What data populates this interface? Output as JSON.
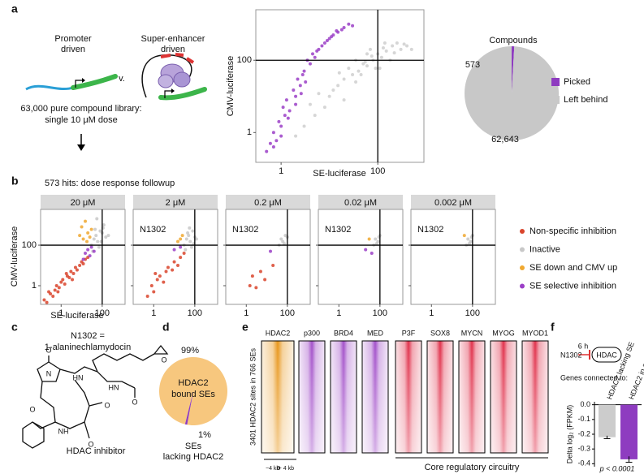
{
  "panel_labels": [
    "a",
    "b",
    "c",
    "d",
    "e",
    "f"
  ],
  "a": {
    "diagram": {
      "promoter": [
        "Promoter",
        "driven"
      ],
      "versus": "v.",
      "super_enhancer": [
        "Super-enhancer",
        "driven"
      ],
      "library": [
        "63,000 pure compound library:",
        "single 10 μM dose"
      ]
    },
    "scatter": {
      "type": "scatter",
      "log": true,
      "xlabel": "SE-luciferase",
      "ylabel": "CMV-luciferase",
      "xlim": [
        0.3,
        900
      ],
      "ylim": [
        0.15,
        2500
      ],
      "xticks": [
        1,
        100
      ],
      "yticks": [
        1,
        100
      ],
      "vline": 100,
      "hline": 100,
      "series": [
        {
          "color": "#cfcfcf",
          "x": [
            2,
            3,
            5,
            4,
            8,
            10,
            6,
            15,
            20,
            12,
            30,
            25,
            40,
            50,
            35,
            60,
            80,
            100,
            70,
            120,
            150,
            200,
            90,
            45,
            300,
            250,
            400,
            500,
            180,
            60,
            20,
            110,
            140,
            35,
            75,
            220,
            350,
            130,
            55,
            16
          ],
          "y": [
            0.8,
            1.5,
            3,
            6,
            5,
            10,
            12,
            20,
            30,
            15,
            40,
            60,
            50,
            80,
            100,
            70,
            100,
            150,
            200,
            120,
            180,
            250,
            60,
            40,
            200,
            300,
            250,
            200,
            100,
            150,
            8,
            60,
            300,
            25,
            130,
            160,
            280,
            220,
            90,
            45
          ]
        },
        {
          "color": "#9b3fc7",
          "x": [
            0.5,
            0.6,
            0.8,
            0.7,
            1,
            0.9,
            1.2,
            1.1,
            1.5,
            1.3,
            2,
            1.8,
            2.5,
            2.2,
            3,
            2.8,
            4,
            3.5,
            5,
            4.5,
            6,
            8,
            7,
            10,
            12,
            9,
            15,
            20,
            18,
            25,
            30,
            1,
            2,
            1.4,
            3.2,
            0.7,
            2.6,
            5.5,
            11,
            14
          ],
          "y": [
            0.3,
            0.5,
            0.6,
            1,
            1.5,
            2,
            3,
            5,
            4,
            8,
            10,
            15,
            20,
            30,
            50,
            40,
            80,
            100,
            120,
            150,
            200,
            300,
            250,
            400,
            500,
            350,
            600,
            800,
            700,
            1000,
            900,
            0.8,
            6,
            2.5,
            25,
            0.4,
            12,
            180,
            450,
            650
          ]
        }
      ]
    },
    "pie": {
      "type": "pie",
      "title": "Compounds",
      "categories": [
        "Picked",
        "Left behind"
      ],
      "values": [
        573,
        62643
      ],
      "value_labels": [
        "573",
        "62,643"
      ],
      "colors": [
        "#8e3cc0",
        "#c8c8c8"
      ]
    }
  },
  "b": {
    "type": "scatter",
    "log": true,
    "title": "573 hits: dose response followup",
    "xlabel": "SE-luciferase",
    "ylabel": "CMV-luciferase",
    "xlim": [
      0.1,
      1300
    ],
    "ylim": [
      0.12,
      5800
    ],
    "xticks": [
      1,
      100
    ],
    "yticks": [
      1,
      100
    ],
    "vline": 100,
    "hline": 100,
    "legend": [
      "Non-specific inhibition",
      "Inactive",
      "SE down and CMV up",
      "SE selective inhibition"
    ],
    "colors": [
      "#d9442b",
      "#c8c8c8",
      "#f0a830",
      "#9b3fc7"
    ],
    "facets": [
      {
        "label": "20 μM",
        "series": [
          {
            "x": [
              0.15,
              0.2,
              0.3,
              0.4,
              0.5,
              0.6,
              0.8,
              1,
              1.2,
              1.5,
              2,
              2.5,
              3,
              4,
              5,
              6,
              8,
              10,
              12,
              15,
              0.25,
              0.7,
              1.8,
              3.5,
              20
            ],
            "y": [
              0.2,
              0.15,
              0.4,
              0.3,
              0.6,
              1,
              0.8,
              1.5,
              2,
              1.2,
              3,
              2.5,
              5,
              4,
              8,
              6,
              10,
              15,
              12,
              20,
              0.5,
              0.5,
              4,
              2,
              25
            ]
          },
          {
            "x": [
              30,
              40,
              50,
              60,
              80,
              100,
              120,
              150,
              70,
              45,
              90,
              200,
              35,
              55,
              110
            ],
            "y": [
              100,
              200,
              300,
              150,
              500,
              400,
              1000,
              250,
              80,
              600,
              150,
              300,
              50,
              2000,
              700
            ]
          },
          {
            "x": [
              8,
              10,
              12,
              15,
              20,
              25,
              30,
              18
            ],
            "y": [
              300,
              800,
              200,
              1500,
              400,
              250,
              600,
              150
            ]
          },
          {
            "x": [
              15,
              20,
              25,
              30,
              40,
              12
            ],
            "y": [
              40,
              60,
              30,
              80,
              50,
              20
            ]
          }
        ]
      },
      {
        "label": "2 μM",
        "annotation": "N1302",
        "series": [
          {
            "x": [
              0.5,
              0.8,
              1,
              1.5,
              2,
              3,
              4,
              5,
              8,
              10,
              15,
              20,
              30,
              1.2
            ],
            "y": [
              0.3,
              1,
              0.5,
              2,
              3,
              1.5,
              5,
              8,
              6,
              15,
              10,
              25,
              40,
              4
            ]
          },
          {
            "x": [
              30,
              40,
              50,
              60,
              80,
              100,
              70,
              45,
              120,
              90,
              55,
              35
            ],
            "y": [
              100,
              200,
              300,
              150,
              500,
              250,
              80,
              400,
              200,
              120,
              700,
              60
            ]
          },
          {
            "x": [
              15,
              20,
              25
            ],
            "y": [
              150,
              200,
              300
            ]
          },
          {
            "x": [
              10,
              20
            ],
            "y": [
              60,
              80
            ]
          }
        ]
      },
      {
        "label": "0.2 μM",
        "annotation": "N1302",
        "series": [
          {
            "x": [
              1.5,
              2,
              3,
              5,
              8,
              20
            ],
            "y": [
              1,
              3,
              0.8,
              5,
              2,
              10
            ]
          },
          {
            "x": [
              40,
              50,
              60,
              80,
              100,
              70
            ],
            "y": [
              100,
              200,
              150,
              300,
              250,
              120
            ]
          },
          {
            "x": [],
            "y": []
          },
          {
            "x": [
              15
            ],
            "y": [
              50
            ]
          }
        ]
      },
      {
        "label": "0.02 μM",
        "annotation": "N1302",
        "series": [
          {
            "x": [],
            "y": []
          },
          {
            "x": [
              50,
              60,
              80,
              100,
              70,
              90
            ],
            "y": [
              100,
              200,
              150,
              300,
              120,
              250
            ]
          },
          {
            "x": [
              30
            ],
            "y": [
              200
            ]
          },
          {
            "x": [
              20,
              40
            ],
            "y": [
              60,
              40
            ]
          }
        ]
      },
      {
        "label": "0.002 μM",
        "annotation": "N1302",
        "series": [
          {
            "x": [],
            "y": []
          },
          {
            "x": [
              50,
              60,
              80,
              100,
              70,
              90
            ],
            "y": [
              100,
              200,
              150,
              300,
              120,
              250
            ]
          },
          {
            "x": [
              40
            ],
            "y": [
              300
            ]
          },
          {
            "x": [],
            "y": []
          }
        ]
      }
    ]
  },
  "c": {
    "lines": [
      "N1302 =",
      "1-alaninechlamydocin"
    ],
    "atoms": [
      "O",
      "N",
      "HN",
      "O",
      "NH",
      "O",
      "HN",
      "O",
      "O",
      "O"
    ],
    "caption": "HDAC inhibitor"
  },
  "d": {
    "type": "pie",
    "values": [
      99,
      1
    ],
    "value_labels": [
      "99%",
      "1%"
    ],
    "labels": [
      [
        "HDAC2",
        "bound SEs"
      ],
      [
        "SEs",
        "lacking HDAC2"
      ]
    ],
    "colors": [
      "#f7c77e",
      "#8e3cc0"
    ]
  },
  "e": {
    "columns": [
      "HDAC2",
      "p300",
      "BRD4",
      "MED",
      "P3F",
      "SOX8",
      "MYCN",
      "MYOG",
      "MYOD1"
    ],
    "colors": [
      "#e8961a",
      "#a24fc9",
      "#a24fc9",
      "#a24fc9",
      "#e0304a",
      "#e0304a",
      "#e0304a",
      "#e0304a",
      "#e0304a"
    ],
    "ylabel": "3401 HDAC2 sites in 766 SEs",
    "xaxis": [
      "−4 kb",
      "0",
      "+ 4 kb"
    ],
    "group_label": "Core regulatory circuitry"
  },
  "f": {
    "header": {
      "compound": "N1302",
      "time": "6 h",
      "target": "HDAC",
      "caption": "Genes connected to:"
    },
    "chart": {
      "type": "bar",
      "categories": [
        "HDAC2 lacking SE",
        "HDAC2 in a SE"
      ],
      "values": [
        -0.22,
        -0.37
      ],
      "errors": [
        0.01,
        0.02
      ],
      "colors": [
        "#cccccc",
        "#8e3cc0"
      ],
      "ylabel": "Delta log₂ (FPKM)",
      "ylim": [
        -0.42,
        0.02
      ],
      "yticks": [
        {
          "value": 0,
          "label": "0.0"
        },
        -0.1,
        -0.2,
        -0.3,
        -0.4
      ],
      "note": "p < 0.0001"
    }
  }
}
